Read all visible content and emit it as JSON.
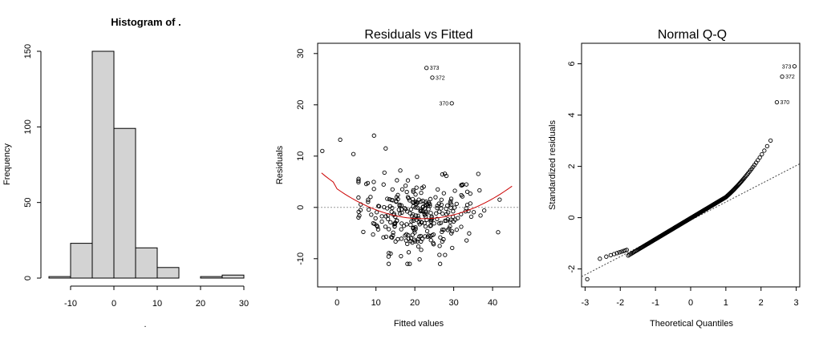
{
  "chart_data": [
    {
      "type": "bar",
      "title": "Histogram of .",
      "xlabel": ".",
      "ylabel": "Frequency",
      "bins": [
        {
          "from": -15,
          "to": -10,
          "count": 1
        },
        {
          "from": -10,
          "to": -5,
          "count": 23
        },
        {
          "from": -5,
          "to": 0,
          "count": 150
        },
        {
          "from": 0,
          "to": 5,
          "count": 99
        },
        {
          "from": 5,
          "to": 10,
          "count": 20
        },
        {
          "from": 10,
          "to": 15,
          "count": 7
        },
        {
          "from": 15,
          "to": 20,
          "count": 0
        },
        {
          "from": 20,
          "to": 25,
          "count": 1
        },
        {
          "from": 25,
          "to": 30,
          "count": 2
        }
      ],
      "xlim": [
        -15,
        30
      ],
      "ylim": [
        0,
        150
      ],
      "xticks": [
        "-10",
        "0",
        "10",
        "20",
        "30"
      ],
      "yticks": [
        "0",
        "50",
        "100",
        "150"
      ],
      "bar_color": "#d3d3d3"
    },
    {
      "type": "scatter",
      "title": "Residuals vs Fitted",
      "xlabel": "Fitted values",
      "ylabel": "Residuals",
      "xlim": [
        -5,
        47
      ],
      "ylim": [
        -15.5,
        32
      ],
      "xticks": [
        "0",
        "10",
        "20",
        "30",
        "40"
      ],
      "yticks": [
        "-10",
        "0",
        "10",
        "20",
        "30"
      ],
      "labeled_points": [
        {
          "id": "373",
          "x": 23,
          "y": 27.2
        },
        {
          "id": "372",
          "x": 24.5,
          "y": 25.3
        },
        {
          "id": "370",
          "x": 29.5,
          "y": 20.3
        }
      ],
      "smooth_color": "#cc0000"
    },
    {
      "type": "scatter",
      "title": "Normal Q-Q",
      "xlabel": "Theoretical Quantiles",
      "ylabel": "Standardized residuals",
      "xlim": [
        -3.1,
        3.1
      ],
      "ylim": [
        -2.7,
        6.8
      ],
      "xticks": [
        "-3",
        "-2",
        "-1",
        "0",
        "1",
        "2",
        "3"
      ],
      "yticks": [
        "-2",
        "0",
        "2",
        "4",
        "6"
      ],
      "labeled_points": [
        {
          "id": "373",
          "x": 2.95,
          "y": 5.9
        },
        {
          "id": "372",
          "x": 2.6,
          "y": 5.5
        },
        {
          "id": "370",
          "x": 2.45,
          "y": 4.5
        }
      ]
    }
  ]
}
